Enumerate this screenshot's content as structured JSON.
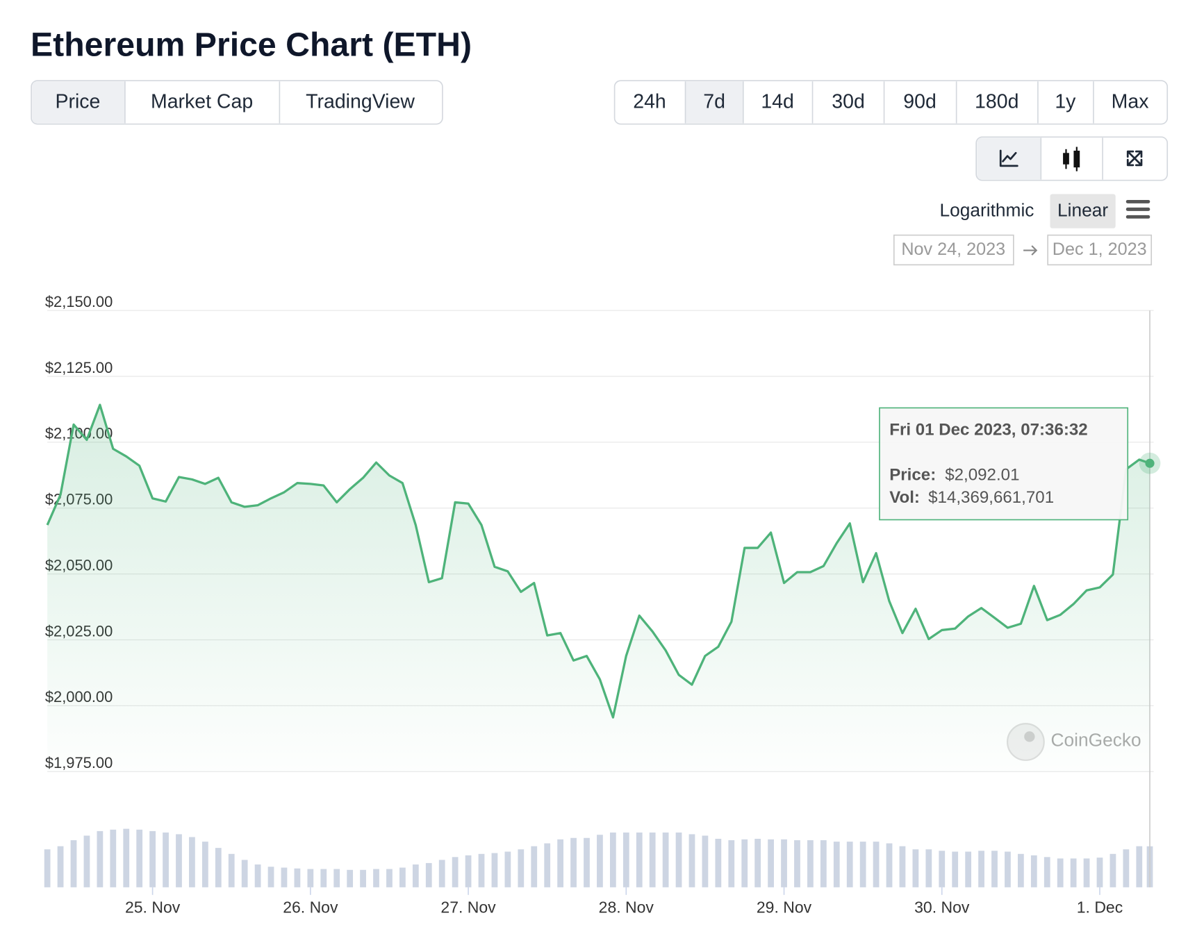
{
  "title": "Ethereum Price Chart (ETH)",
  "tabs": [
    "Price",
    "Market Cap",
    "TradingView"
  ],
  "ranges": [
    "24h",
    "7d",
    "14d",
    "30d",
    "90d",
    "180d",
    "1y",
    "Max"
  ],
  "scale_options": [
    "Logarithmic",
    "Linear"
  ],
  "date_range": {
    "from": "Nov 24, 2023",
    "to": "Dec 1, 2023"
  },
  "watermark": "CoinGecko",
  "chart_data": {
    "type": "line",
    "color": "#4eb37a",
    "x": [
      "2023-11-24T08:00",
      "2023-11-24T10:00",
      "2023-11-24T12:00",
      "2023-11-24T14:00",
      "2023-11-24T16:00",
      "2023-11-24T18:00",
      "2023-11-24T20:00",
      "2023-11-24T22:00",
      "2023-11-25T00:00",
      "2023-11-25T02:00",
      "2023-11-25T04:00",
      "2023-11-25T06:00",
      "2023-11-25T08:00",
      "2023-11-25T10:00",
      "2023-11-25T12:00",
      "2023-11-25T14:00",
      "2023-11-25T16:00",
      "2023-11-25T18:00",
      "2023-11-25T20:00",
      "2023-11-25T22:00",
      "2023-11-26T00:00",
      "2023-11-26T02:00",
      "2023-11-26T04:00",
      "2023-11-26T06:00",
      "2023-11-26T08:00",
      "2023-11-26T10:00",
      "2023-11-26T12:00",
      "2023-11-26T14:00",
      "2023-11-26T16:00",
      "2023-11-26T18:00",
      "2023-11-26T20:00",
      "2023-11-26T22:00",
      "2023-11-27T00:00",
      "2023-11-27T02:00",
      "2023-11-27T04:00",
      "2023-11-27T06:00",
      "2023-11-27T08:00",
      "2023-11-27T10:00",
      "2023-11-27T12:00",
      "2023-11-27T14:00",
      "2023-11-27T16:00",
      "2023-11-27T18:00",
      "2023-11-27T20:00",
      "2023-11-27T22:00",
      "2023-11-28T00:00",
      "2023-11-28T02:00",
      "2023-11-28T04:00",
      "2023-11-28T06:00",
      "2023-11-28T08:00",
      "2023-11-28T10:00",
      "2023-11-28T12:00",
      "2023-11-28T14:00",
      "2023-11-28T16:00",
      "2023-11-28T18:00",
      "2023-11-28T20:00",
      "2023-11-28T22:00",
      "2023-11-29T00:00",
      "2023-11-29T02:00",
      "2023-11-29T04:00",
      "2023-11-29T06:00",
      "2023-11-29T08:00",
      "2023-11-29T10:00",
      "2023-11-29T12:00",
      "2023-11-29T14:00",
      "2023-11-29T16:00",
      "2023-11-29T18:00",
      "2023-11-29T20:00",
      "2023-11-29T22:00",
      "2023-11-30T00:00",
      "2023-11-30T02:00",
      "2023-11-30T04:00",
      "2023-11-30T06:00",
      "2023-11-30T08:00",
      "2023-11-30T10:00",
      "2023-11-30T12:00",
      "2023-11-30T14:00",
      "2023-11-30T16:00",
      "2023-11-30T18:00",
      "2023-11-30T20:00",
      "2023-11-30T22:00",
      "2023-12-01T00:00",
      "2023-12-01T02:00",
      "2023-12-01T04:00",
      "2023-12-01T06:00",
      "2023-12-01T07:36:32"
    ],
    "values": [
      2068.6,
      2080.1,
      2106.7,
      2100.9,
      2114.2,
      2097.5,
      2094.6,
      2091.1,
      2078.7,
      2077.5,
      2086.8,
      2085.9,
      2084.2,
      2086.5,
      2077.2,
      2075.5,
      2076.1,
      2078.7,
      2081.0,
      2084.5,
      2084.2,
      2083.6,
      2077.2,
      2082.2,
      2086.5,
      2092.3,
      2087.4,
      2084.5,
      2068.6,
      2046.9,
      2048.4,
      2077.2,
      2076.7,
      2068.6,
      2052.7,
      2051.0,
      2043.2,
      2046.6,
      2026.7,
      2027.6,
      2017.2,
      2018.9,
      2010.0,
      1995.6,
      2018.9,
      2034.2,
      2028.2,
      2021.0,
      2011.7,
      2008.0,
      2018.9,
      2022.4,
      2031.9,
      2059.9,
      2059.9,
      2065.7,
      2046.6,
      2050.7,
      2050.7,
      2053.0,
      2061.7,
      2069.2,
      2046.9,
      2057.9,
      2039.7,
      2027.6,
      2036.8,
      2025.3,
      2028.7,
      2029.3,
      2033.9,
      2037.1,
      2033.4,
      2029.6,
      2031.1,
      2045.5,
      2032.5,
      2034.5,
      2038.6,
      2043.8,
      2044.9,
      2049.8,
      2089.7,
      2093.4,
      2092.01
    ],
    "volume_color": "#cdd5e3",
    "volume_lim": [
      0,
      40000000000
    ],
    "volume_values": [
      13300000000,
      14400000000,
      16500000000,
      18100000000,
      19700000000,
      20200000000,
      20500000000,
      20200000000,
      19700000000,
      19200000000,
      18600000000,
      17600000000,
      16000000000,
      13800000000,
      11700000000,
      9600000000,
      8000000000,
      7200000000,
      6900000000,
      6600000000,
      6400000000,
      6400000000,
      6400000000,
      6100000000,
      6100000000,
      6400000000,
      6400000000,
      6900000000,
      8000000000,
      8500000000,
      9600000000,
      10600000000,
      11200000000,
      11700000000,
      12000000000,
      12500000000,
      13300000000,
      14400000000,
      15400000000,
      16800000000,
      17300000000,
      17300000000,
      18400000000,
      19200000000,
      19200000000,
      19200000000,
      19200000000,
      19200000000,
      19200000000,
      18600000000,
      18100000000,
      17000000000,
      16500000000,
      16800000000,
      17000000000,
      16800000000,
      16800000000,
      16500000000,
      16500000000,
      16500000000,
      16000000000,
      16000000000,
      16000000000,
      16000000000,
      15400000000,
      14400000000,
      13300000000,
      13300000000,
      12800000000,
      12500000000,
      12500000000,
      12800000000,
      12800000000,
      12500000000,
      11700000000,
      11200000000,
      10600000000,
      10100000000,
      10100000000,
      10100000000,
      10400000000,
      11700000000,
      13300000000,
      14400000000,
      14369661701
    ],
    "xlim": [
      "2023-11-24T08:00",
      "2023-12-01T07:36:32"
    ],
    "xticks": [
      {
        "value": "2023-11-25T00:00",
        "label": "25. Nov"
      },
      {
        "value": "2023-11-26T00:00",
        "label": "26. Nov"
      },
      {
        "value": "2023-11-27T00:00",
        "label": "27. Nov"
      },
      {
        "value": "2023-11-28T00:00",
        "label": "28. Nov"
      },
      {
        "value": "2023-11-29T00:00",
        "label": "29. Nov"
      },
      {
        "value": "2023-11-30T00:00",
        "label": "30. Nov"
      },
      {
        "value": "2023-12-01T00:00",
        "label": "1. Dec"
      }
    ],
    "ylim": [
      1975,
      2150
    ],
    "yticks": [
      {
        "value": 1975,
        "label": "$1,975.00"
      },
      {
        "value": 2000,
        "label": "$2,000.00"
      },
      {
        "value": 2025,
        "label": "$2,025.00"
      },
      {
        "value": 2050,
        "label": "$2,050.00"
      },
      {
        "value": 2075,
        "label": "$2,075.00"
      },
      {
        "value": 2100,
        "label": "$2,100.00"
      },
      {
        "value": 2125,
        "label": "$2,125.00"
      },
      {
        "value": 2150,
        "label": "$2,150.00"
      }
    ],
    "grid": true,
    "tooltip": {
      "title": "Fri 01 Dec 2023, 07:36:32",
      "price_label": "Price:",
      "price": "$2,092.01",
      "vol_label": "Vol:",
      "vol": "$14,369,661,701"
    }
  }
}
